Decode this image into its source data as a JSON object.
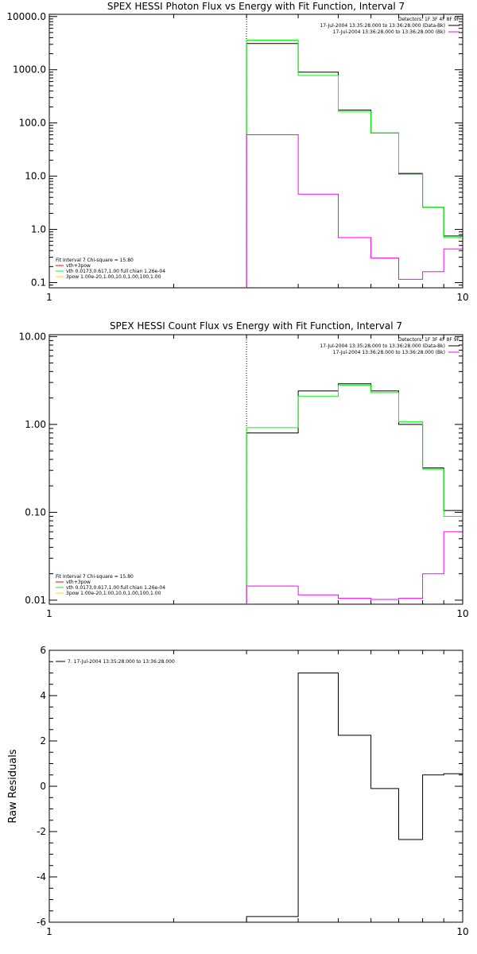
{
  "chart_data": [
    {
      "type": "line",
      "title": "SPEX HESSI Photon Flux vs Energy with Fit Function, Interval 7",
      "xlabel": "",
      "ylabel": "",
      "xscale": "log",
      "yscale": "log",
      "xlim": [
        1,
        10
      ],
      "ylim": [
        0.08,
        11000
      ],
      "x_ticks": [
        1,
        10
      ],
      "x_tick_labels": [
        "1",
        "10"
      ],
      "y_ticks": [
        0.1,
        1,
        10,
        100,
        1000,
        10000
      ],
      "y_tick_labels": [
        "0.1",
        "1.0",
        "10.0",
        "100.0",
        "1000.0",
        "10000.0"
      ],
      "marker_x": 3,
      "info_lines": [
        "Detectors: 1F 3F 4F 8F 9F"
      ],
      "legend": [
        {
          "label": "17-Jul-2004 13:35:28.000 to 13:36:28.000 (Data-Bk)",
          "color": "#000000"
        },
        {
          "label": "17-Jul-2004 13:36:28.000 to 13:36:28.000 (Bk)",
          "color": "#ff00ff"
        }
      ],
      "fit_text": [
        {
          "label": "Fit Interval  7    Chi-square = 15.80",
          "color": ""
        },
        {
          "label": "vth+3pow",
          "color": "#ff0000"
        },
        {
          "label": "vth 0.0173,0.617,1.00   full chian 1.26e-04",
          "color": "#00ff00"
        },
        {
          "label": "3pow 1.00e-20,1.00,10.0,1.00,100,1.00",
          "color": "#ffd700"
        }
      ],
      "series": [
        {
          "name": "",
          "color": "#000000",
          "edges": [
            3,
            4,
            5,
            6,
            7,
            8,
            9,
            10
          ],
          "values": [
            3100,
            900,
            175,
            65,
            11,
            2.6,
            0.75
          ]
        },
        {
          "name": "",
          "color": "#00ff00",
          "edges": [
            3,
            4,
            5,
            6,
            7,
            8,
            9,
            10
          ],
          "values": [
            3600,
            780,
            165,
            65,
            11.5,
            2.6,
            0.7
          ]
        },
        {
          "name": "",
          "color": "#ff00ff",
          "edges": [
            3,
            4,
            5,
            6,
            7,
            8,
            9,
            10
          ],
          "values": [
            60,
            4.6,
            0.7,
            0.29,
            0.115,
            0.16,
            0.43
          ]
        }
      ]
    },
    {
      "type": "line",
      "title": "SPEX HESSI Count Flux vs Energy with Fit Function, Interval 7",
      "xlabel": "",
      "ylabel": "",
      "xscale": "log",
      "yscale": "log",
      "xlim": [
        1,
        10
      ],
      "ylim": [
        0.009,
        10.5
      ],
      "x_ticks": [
        1,
        10
      ],
      "x_tick_labels": [
        "1",
        "10"
      ],
      "y_ticks": [
        0.01,
        0.1,
        1,
        10
      ],
      "y_tick_labels": [
        "0.01",
        "0.10",
        "1.00",
        "10.00"
      ],
      "marker_x": 3,
      "info_lines": [
        "Detectors: 1F 3F 4F 8F 9F"
      ],
      "legend": [
        {
          "label": "17-Jul-2004 13:35:28.000 to 13:36:28.000 (Data-Bk)",
          "color": "#000000"
        },
        {
          "label": "17-Jul-2004 13:36:28.000 to 13:36:28.000 (Bk)",
          "color": "#ff00ff"
        }
      ],
      "fit_text": [
        {
          "label": "Fit Interval  7    Chi-square = 15.80",
          "color": ""
        },
        {
          "label": "vth+3pow",
          "color": "#ff0000"
        },
        {
          "label": "vth 0.0173,0.617,1.00   full chian 1.26e-04",
          "color": "#00ff00"
        },
        {
          "label": "3pow 1.00e-20,1.00,10.0,1.00,100,1.00",
          "color": "#ffd700"
        }
      ],
      "series": [
        {
          "name": "",
          "color": "#000000",
          "edges": [
            3,
            4,
            5,
            6,
            7,
            8,
            9,
            10
          ],
          "values": [
            0.8,
            2.4,
            2.9,
            2.4,
            1.0,
            0.32,
            0.105
          ]
        },
        {
          "name": "",
          "color": "#00ff00",
          "edges": [
            3,
            4,
            5,
            6,
            7,
            8,
            9,
            10
          ],
          "values": [
            0.92,
            2.1,
            2.8,
            2.3,
            1.07,
            0.31,
            0.09
          ]
        },
        {
          "name": "",
          "color": "#ff00ff",
          "edges": [
            3,
            4,
            5,
            6,
            7,
            8,
            9,
            10
          ],
          "values": [
            0.0145,
            0.0115,
            0.0105,
            0.0102,
            0.0105,
            0.02,
            0.06
          ]
        }
      ]
    },
    {
      "type": "line",
      "title": "",
      "xlabel": "",
      "ylabel": "Raw Residuals",
      "xscale": "log",
      "yscale": "linear",
      "xlim": [
        1,
        10
      ],
      "ylim": [
        -6,
        6
      ],
      "x_ticks": [
        1,
        10
      ],
      "x_tick_labels": [
        "1",
        "10"
      ],
      "y_ticks": [
        -6,
        -4,
        -2,
        0,
        2,
        4,
        6
      ],
      "y_tick_labels": [
        "-6",
        "-4",
        "-2",
        "0",
        "2",
        "4",
        "6"
      ],
      "legend": [
        {
          "label": "7. 17-Jul-2004 13:35:28.000 to 13:36:28.000",
          "color": "#000000"
        }
      ],
      "series": [
        {
          "name": "",
          "color": "#000000",
          "edges": [
            3,
            4,
            5,
            6,
            7,
            8,
            9,
            10
          ],
          "values": [
            -5.75,
            5.0,
            2.25,
            -0.1,
            -2.35,
            0.5,
            0.55
          ]
        }
      ]
    }
  ]
}
